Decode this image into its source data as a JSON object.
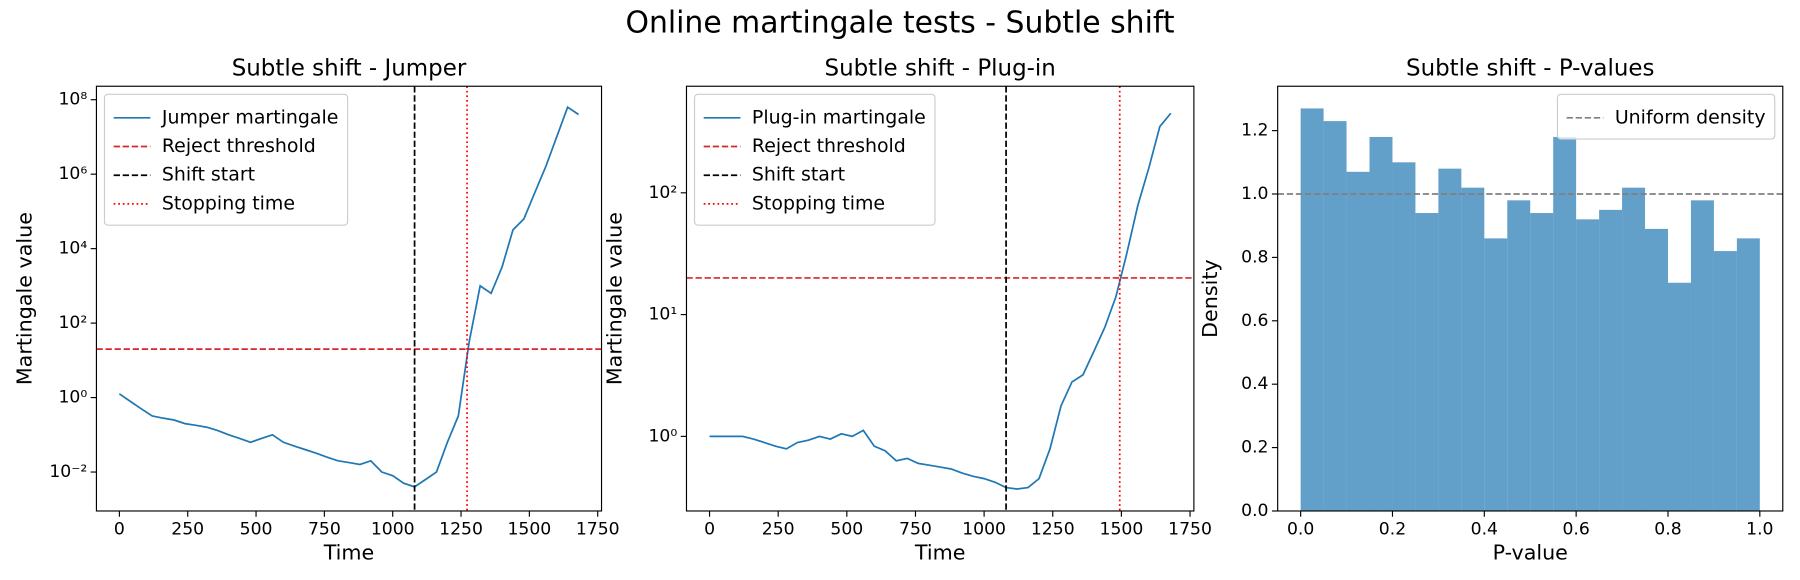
{
  "title": "Online martingale tests - Subtle shift",
  "chart_data": [
    {
      "type": "line",
      "title": "Subtle shift - Jumper",
      "xlabel": "Time",
      "ylabel": "Martingale value",
      "yscale": "log",
      "x": [
        0,
        40,
        80,
        120,
        160,
        200,
        240,
        280,
        320,
        360,
        400,
        440,
        480,
        520,
        560,
        600,
        640,
        680,
        720,
        760,
        800,
        840,
        880,
        920,
        960,
        1000,
        1040,
        1080,
        1120,
        1160,
        1200,
        1240,
        1280,
        1320,
        1360,
        1400,
        1440,
        1480,
        1520,
        1560,
        1600,
        1640,
        1680
      ],
      "series": [
        {
          "name": "Jumper martingale",
          "color": "#1f77b4",
          "values": [
            1.26,
            0.79,
            0.5,
            0.32,
            0.28,
            0.25,
            0.2,
            0.18,
            0.16,
            0.13,
            0.1,
            0.08,
            0.063,
            0.08,
            0.1,
            0.063,
            0.05,
            0.04,
            0.032,
            0.025,
            0.02,
            0.018,
            0.016,
            0.02,
            0.01,
            0.008,
            0.005,
            0.004,
            0.0063,
            0.01,
            0.063,
            0.32,
            32,
            1000,
            630,
            3200,
            32000,
            63000,
            320000,
            1600000,
            10000000,
            63000000,
            40000000
          ]
        }
      ],
      "hlines": [
        {
          "name": "Reject threshold",
          "value": 20,
          "color": "#d62728",
          "style": "dashed"
        }
      ],
      "vlines": [
        {
          "name": "Shift start",
          "value": 1080,
          "color": "#000000",
          "style": "dashed"
        },
        {
          "name": "Stopping time",
          "value": 1272,
          "color": "#ff0000",
          "style": "dotted"
        }
      ],
      "xlim": [
        -84,
        1764
      ],
      "xticks": [
        0,
        250,
        500,
        750,
        1000,
        1250,
        1500,
        1750
      ],
      "ylim": [
        0.0009,
        230000000
      ],
      "yticks": [
        {
          "value": 0.01,
          "label": "10⁻²"
        },
        {
          "value": 1,
          "label": "10⁰"
        },
        {
          "value": 100,
          "label": "10²"
        },
        {
          "value": 10000,
          "label": "10⁴"
        },
        {
          "value": 1000000,
          "label": "10⁶"
        },
        {
          "value": 100000000,
          "label": "10⁸"
        }
      ],
      "legend": "upper left"
    },
    {
      "type": "line",
      "title": "Subtle shift - Plug-in",
      "xlabel": "Time",
      "ylabel": "Martingale value",
      "yscale": "log",
      "x": [
        0,
        40,
        80,
        120,
        160,
        200,
        240,
        280,
        320,
        360,
        400,
        440,
        480,
        520,
        560,
        600,
        640,
        680,
        720,
        760,
        800,
        840,
        880,
        920,
        960,
        1000,
        1040,
        1080,
        1120,
        1160,
        1200,
        1240,
        1280,
        1320,
        1360,
        1400,
        1440,
        1480,
        1520,
        1560,
        1600,
        1640,
        1680
      ],
      "series": [
        {
          "name": "Plug-in martingale",
          "color": "#1f77b4",
          "values": [
            1,
            1,
            1,
            1,
            0.95,
            0.89,
            0.83,
            0.79,
            0.89,
            0.93,
            1.0,
            0.95,
            1.05,
            1.0,
            1.12,
            0.83,
            0.76,
            0.63,
            0.66,
            0.6,
            0.58,
            0.56,
            0.54,
            0.5,
            0.47,
            0.45,
            0.42,
            0.38,
            0.37,
            0.38,
            0.45,
            0.79,
            1.78,
            2.8,
            3.2,
            5.0,
            7.9,
            14,
            32,
            79,
            160,
            350,
            450
          ]
        }
      ],
      "hlines": [
        {
          "name": "Reject threshold",
          "value": 20,
          "color": "#d62728",
          "style": "dashed"
        }
      ],
      "vlines": [
        {
          "name": "Shift start",
          "value": 1080,
          "color": "#000000",
          "style": "dashed"
        },
        {
          "name": "Stopping time",
          "value": 1494,
          "color": "#ff0000",
          "style": "dotted"
        }
      ],
      "xlim": [
        -84,
        1764
      ],
      "xticks": [
        0,
        250,
        500,
        750,
        1000,
        1250,
        1500,
        1750
      ],
      "ylim": [
        0.244,
        750
      ],
      "yticks": [
        {
          "value": 1,
          "label": "10⁰"
        },
        {
          "value": 10,
          "label": "10¹"
        },
        {
          "value": 100,
          "label": "10²"
        }
      ],
      "legend": "upper left"
    },
    {
      "type": "histogram",
      "title": "Subtle shift - P-values",
      "xlabel": "P-value",
      "ylabel": "Density",
      "bins": [
        0,
        0.05,
        0.1,
        0.15,
        0.2,
        0.25,
        0.3,
        0.35,
        0.4,
        0.45,
        0.5,
        0.55,
        0.6,
        0.65,
        0.7,
        0.75,
        0.8,
        0.85,
        0.9,
        0.95,
        1.0
      ],
      "values": [
        1.27,
        1.23,
        1.07,
        1.18,
        1.1,
        0.94,
        1.08,
        1.02,
        0.86,
        0.98,
        0.94,
        1.18,
        0.92,
        0.95,
        1.02,
        0.89,
        0.72,
        0.98,
        0.82,
        0.86
      ],
      "color": "#1f77b4",
      "opacity": 0.7,
      "hlines": [
        {
          "name": "Uniform density",
          "value": 1,
          "color": "#808080",
          "style": "dashed"
        }
      ],
      "xlim": [
        -0.05,
        1.05
      ],
      "xticks": [
        {
          "value": 0,
          "label": "0.0"
        },
        0.2,
        0.4,
        0.6,
        0.8,
        {
          "value": 1,
          "label": "1.0"
        }
      ],
      "ylim": [
        0,
        1.34
      ],
      "yticks": [
        {
          "value": 0,
          "label": "0.0"
        },
        0.2,
        0.4,
        0.6,
        0.8,
        {
          "value": 1,
          "label": "1.0"
        },
        1.2
      ],
      "legend": "upper right"
    }
  ]
}
